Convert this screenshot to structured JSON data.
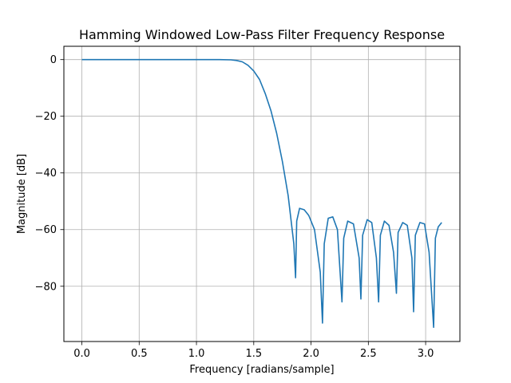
{
  "chart_data": {
    "type": "line",
    "title": "Hamming Windowed Low-Pass Filter Frequency Response",
    "xlabel": "Frequency [radians/sample]",
    "ylabel": "Magnitude [dB]",
    "xlim": [
      -0.157,
      3.299
    ],
    "ylim": [
      -99.5,
      4.7
    ],
    "xticks": [
      0.0,
      0.5,
      1.0,
      1.5,
      2.0,
      2.5,
      3.0
    ],
    "xtick_labels": [
      "0.0",
      "0.5",
      "1.0",
      "1.5",
      "2.0",
      "2.5",
      "3.0"
    ],
    "yticks": [
      0,
      -20,
      -40,
      -60,
      -80
    ],
    "ytick_labels": [
      "0",
      "−20",
      "−40",
      "−60",
      "−80"
    ],
    "grid": true,
    "line_color": "#1f77b4",
    "series": [
      {
        "x": [
          0.0,
          0.2,
          0.4,
          0.6,
          0.8,
          1.0,
          1.2,
          1.3,
          1.35,
          1.4,
          1.45,
          1.5,
          1.55,
          1.6,
          1.65,
          1.7,
          1.75,
          1.8,
          1.85,
          1.865,
          1.875,
          1.9,
          1.94,
          1.98,
          2.03,
          2.08,
          2.1,
          2.115,
          2.15,
          2.19,
          2.23,
          2.27,
          2.285,
          2.32,
          2.37,
          2.42,
          2.435,
          2.45,
          2.49,
          2.53,
          2.57,
          2.59,
          2.605,
          2.64,
          2.68,
          2.72,
          2.745,
          2.76,
          2.8,
          2.84,
          2.88,
          2.895,
          2.91,
          2.95,
          2.99,
          3.03,
          3.07,
          3.085,
          3.11,
          3.14
        ],
        "y": [
          0,
          0,
          0,
          0,
          0,
          0,
          0,
          -0.1,
          -0.3,
          -0.8,
          -2,
          -4,
          -7,
          -12,
          -18,
          -26,
          -36,
          -48,
          -65,
          -77,
          -57,
          -52.5,
          -53,
          -55,
          -60,
          -75,
          -93,
          -65,
          -56,
          -55.5,
          -60,
          -85.5,
          -63,
          -57,
          -58,
          -70,
          -84.5,
          -62,
          -56.5,
          -57.5,
          -70,
          -85.5,
          -62,
          -57,
          -58.5,
          -68,
          -82.5,
          -61,
          -57.5,
          -58.5,
          -70,
          -89,
          -62,
          -57.5,
          -58,
          -68,
          -94.5,
          -63,
          -59,
          -57.5
        ]
      }
    ]
  }
}
